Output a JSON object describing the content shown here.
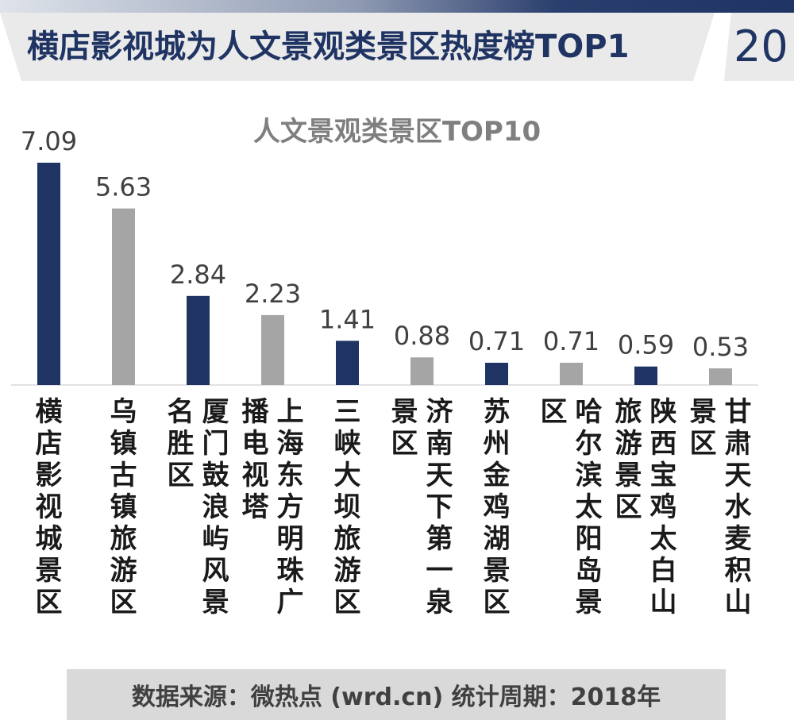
{
  "header": {
    "title": "横店影视城为人文景观类景区热度榜TOP1",
    "page_number": "20"
  },
  "footer": {
    "source": "数据来源：微热点 (wrd.cn)    统计周期：2018年"
  },
  "colors": {
    "dark": "#1f3463",
    "gray": "#a5a5a5",
    "title_gray": "#7f7f7f"
  },
  "chart_data": {
    "type": "bar",
    "title": "人文景观类景区TOP10",
    "xlabel": "",
    "ylabel": "",
    "ylim": [
      0,
      8
    ],
    "grid": false,
    "categories": [
      "横店影视城景区",
      "乌镇古镇旅游区",
      "厦门鼓浪屿风景名胜区",
      "上海东方明珠广播电视塔",
      "三峡大坝旅游区",
      "济南天下第一泉景区",
      "苏州金鸡湖景区",
      "哈尔滨太阳岛景区",
      "陕西宝鸡太白山旅游景区",
      "甘肃天水麦积山景区"
    ],
    "values": [
      7.09,
      5.63,
      2.84,
      2.23,
      1.41,
      0.88,
      0.71,
      0.71,
      0.59,
      0.53
    ],
    "value_labels": [
      "7.09",
      "5.63",
      "2.84",
      "2.23",
      "1.41",
      "0.88",
      "0.71",
      "0.71",
      "0.59",
      "0.53"
    ],
    "bar_colors": [
      "#1f3463",
      "#a5a5a5",
      "#1f3463",
      "#a5a5a5",
      "#1f3463",
      "#a5a5a5",
      "#1f3463",
      "#a5a5a5",
      "#1f3463",
      "#a5a5a5"
    ]
  }
}
